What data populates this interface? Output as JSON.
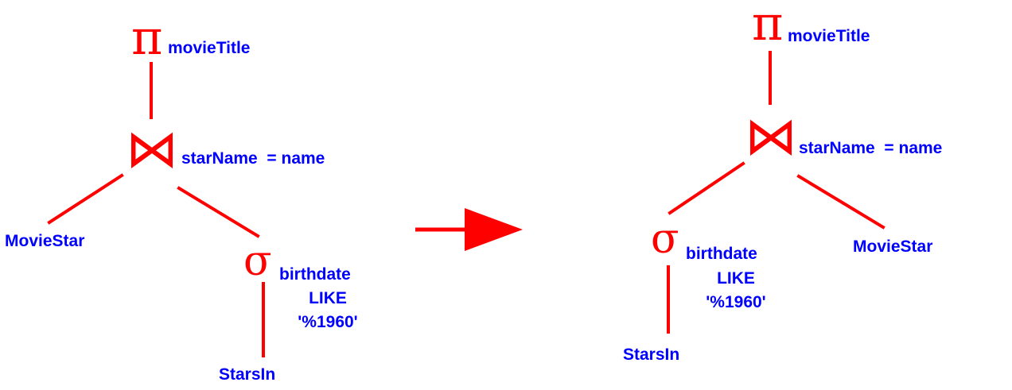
{
  "colors": {
    "operator": "#ff0000",
    "text": "#0000ff",
    "background": "#ffffff"
  },
  "symbols": {
    "projection": "π",
    "join": "⋈",
    "selection": "σ"
  },
  "before": {
    "projection_attr": "movieTitle",
    "join_condition": "starName  = name",
    "left_relation": "MovieStar",
    "selection_lines": [
      "birthdate",
      "LIKE",
      "'%1960'"
    ],
    "selection_child": "StarsIn"
  },
  "after": {
    "projection_attr": "movieTitle",
    "join_condition": "starName  = name",
    "right_relation": "MovieStar",
    "selection_lines": [
      "birthdate",
      "LIKE",
      "'%1960'"
    ],
    "selection_child": "StarsIn"
  },
  "transform_arrow": "right-arrow-icon"
}
